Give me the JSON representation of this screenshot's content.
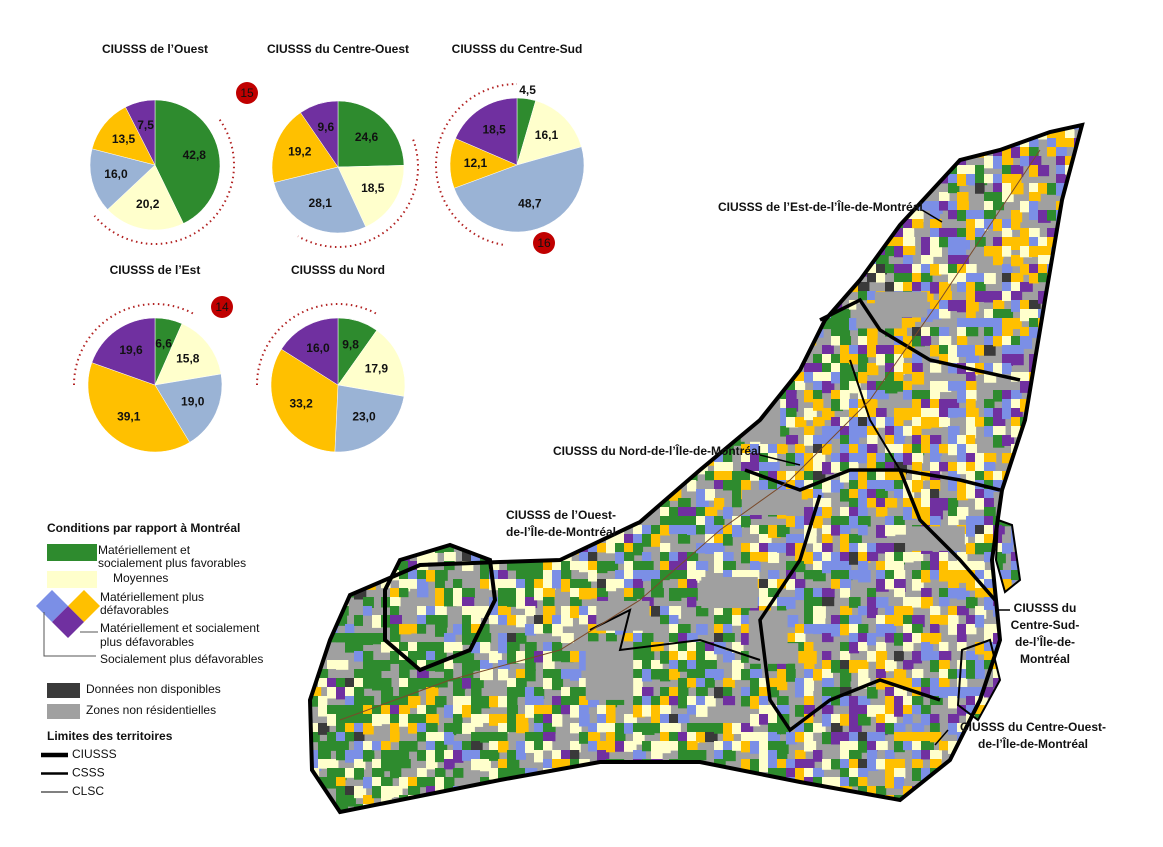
{
  "chart_data": [
    {
      "type": "pie",
      "title": "CIUSSS de l’Ouest",
      "values": [
        42.8,
        20.2,
        16.0,
        13.5,
        7.5
      ],
      "value_labels": [
        "42,8",
        "20,2",
        "16,0",
        "13,5",
        "7,5"
      ],
      "colors": [
        "#2e8b2e",
        "#ffffcc",
        "#9ab3d5",
        "#ffc000",
        "#7030a0"
      ],
      "annotation": 15
    },
    {
      "type": "pie",
      "title": "CIUSSS du Centre-Ouest",
      "values": [
        24.6,
        18.5,
        28.1,
        19.2,
        9.6
      ],
      "value_labels": [
        "24,6",
        "18,5",
        "28,1",
        "19,2",
        "9,6"
      ],
      "colors": [
        "#2e8b2e",
        "#ffffcc",
        "#9ab3d5",
        "#ffc000",
        "#7030a0"
      ]
    },
    {
      "type": "pie",
      "title": "CIUSSS du Centre-Sud",
      "values": [
        4.5,
        16.1,
        48.7,
        12.1,
        18.5
      ],
      "value_labels": [
        "4,5",
        "16,1",
        "48,7",
        "12,1",
        "18,5"
      ],
      "colors": [
        "#2e8b2e",
        "#ffffcc",
        "#9ab3d5",
        "#ffc000",
        "#7030a0"
      ],
      "annotation": 16
    },
    {
      "type": "pie",
      "title": "CIUSSS de l’Est",
      "values": [
        6.6,
        15.8,
        19.0,
        39.1,
        19.6
      ],
      "value_labels": [
        "6,6",
        "15,8",
        "19,0",
        "39,1",
        "19,6"
      ],
      "colors": [
        "#2e8b2e",
        "#ffffcc",
        "#9ab3d5",
        "#ffc000",
        "#7030a0"
      ],
      "annotation": 14
    },
    {
      "type": "pie",
      "title": "CIUSSS du Nord",
      "values": [
        9.8,
        17.9,
        23.0,
        33.2,
        16.0
      ],
      "value_labels": [
        "9,8",
        "17,9",
        "23,0",
        "33,2",
        "16,0"
      ],
      "colors": [
        "#2e8b2e",
        "#ffffcc",
        "#9ab3d5",
        "#ffc000",
        "#7030a0"
      ]
    }
  ],
  "legend": {
    "title": "Conditions par rapport à Montréal",
    "items": [
      {
        "lines": [
          "Matériellement et",
          "socialement plus favorables"
        ],
        "color": "#2e8b2e"
      },
      {
        "lines": [
          "Moyennes"
        ],
        "color": "#ffffcc"
      },
      {
        "lines": [
          "Matériellement plus",
          "défavorables"
        ],
        "color": "#ffc000"
      },
      {
        "lines": [
          "Matériellement et socialement",
          "plus défavorables"
        ],
        "color": "#7030a0"
      },
      {
        "lines": [
          "Socialement plus défavorables"
        ],
        "color": "#7b8fe6"
      },
      {
        "lines": [
          "Données non disponibles"
        ],
        "color": "#3a3a3a"
      },
      {
        "lines": [
          "Zones non résidentielles"
        ],
        "color": "#a0a0a0"
      }
    ]
  },
  "boundaries": {
    "title": "Limites des territoires",
    "items": [
      "CIUSSS",
      "CSSS",
      "CLSC"
    ]
  },
  "map": {
    "labels": [
      {
        "lines": [
          "CIUSSS de l’Est-de-l’Île-de-Montréal"
        ]
      },
      {
        "lines": [
          "CIUSSS du Nord-de-l’Île-de-Montréal"
        ]
      },
      {
        "lines": [
          "CIUSSS de l’Ouest-",
          "de-l’Île-de-Montréal"
        ]
      },
      {
        "lines": [
          "CIUSSS du",
          "Centre-Sud-",
          "de-l’Île-de-",
          "Montréal"
        ]
      },
      {
        "lines": [
          "CIUSSS du Centre-Ouest-",
          "de-l’Île-de-Montréal"
        ]
      }
    ]
  }
}
